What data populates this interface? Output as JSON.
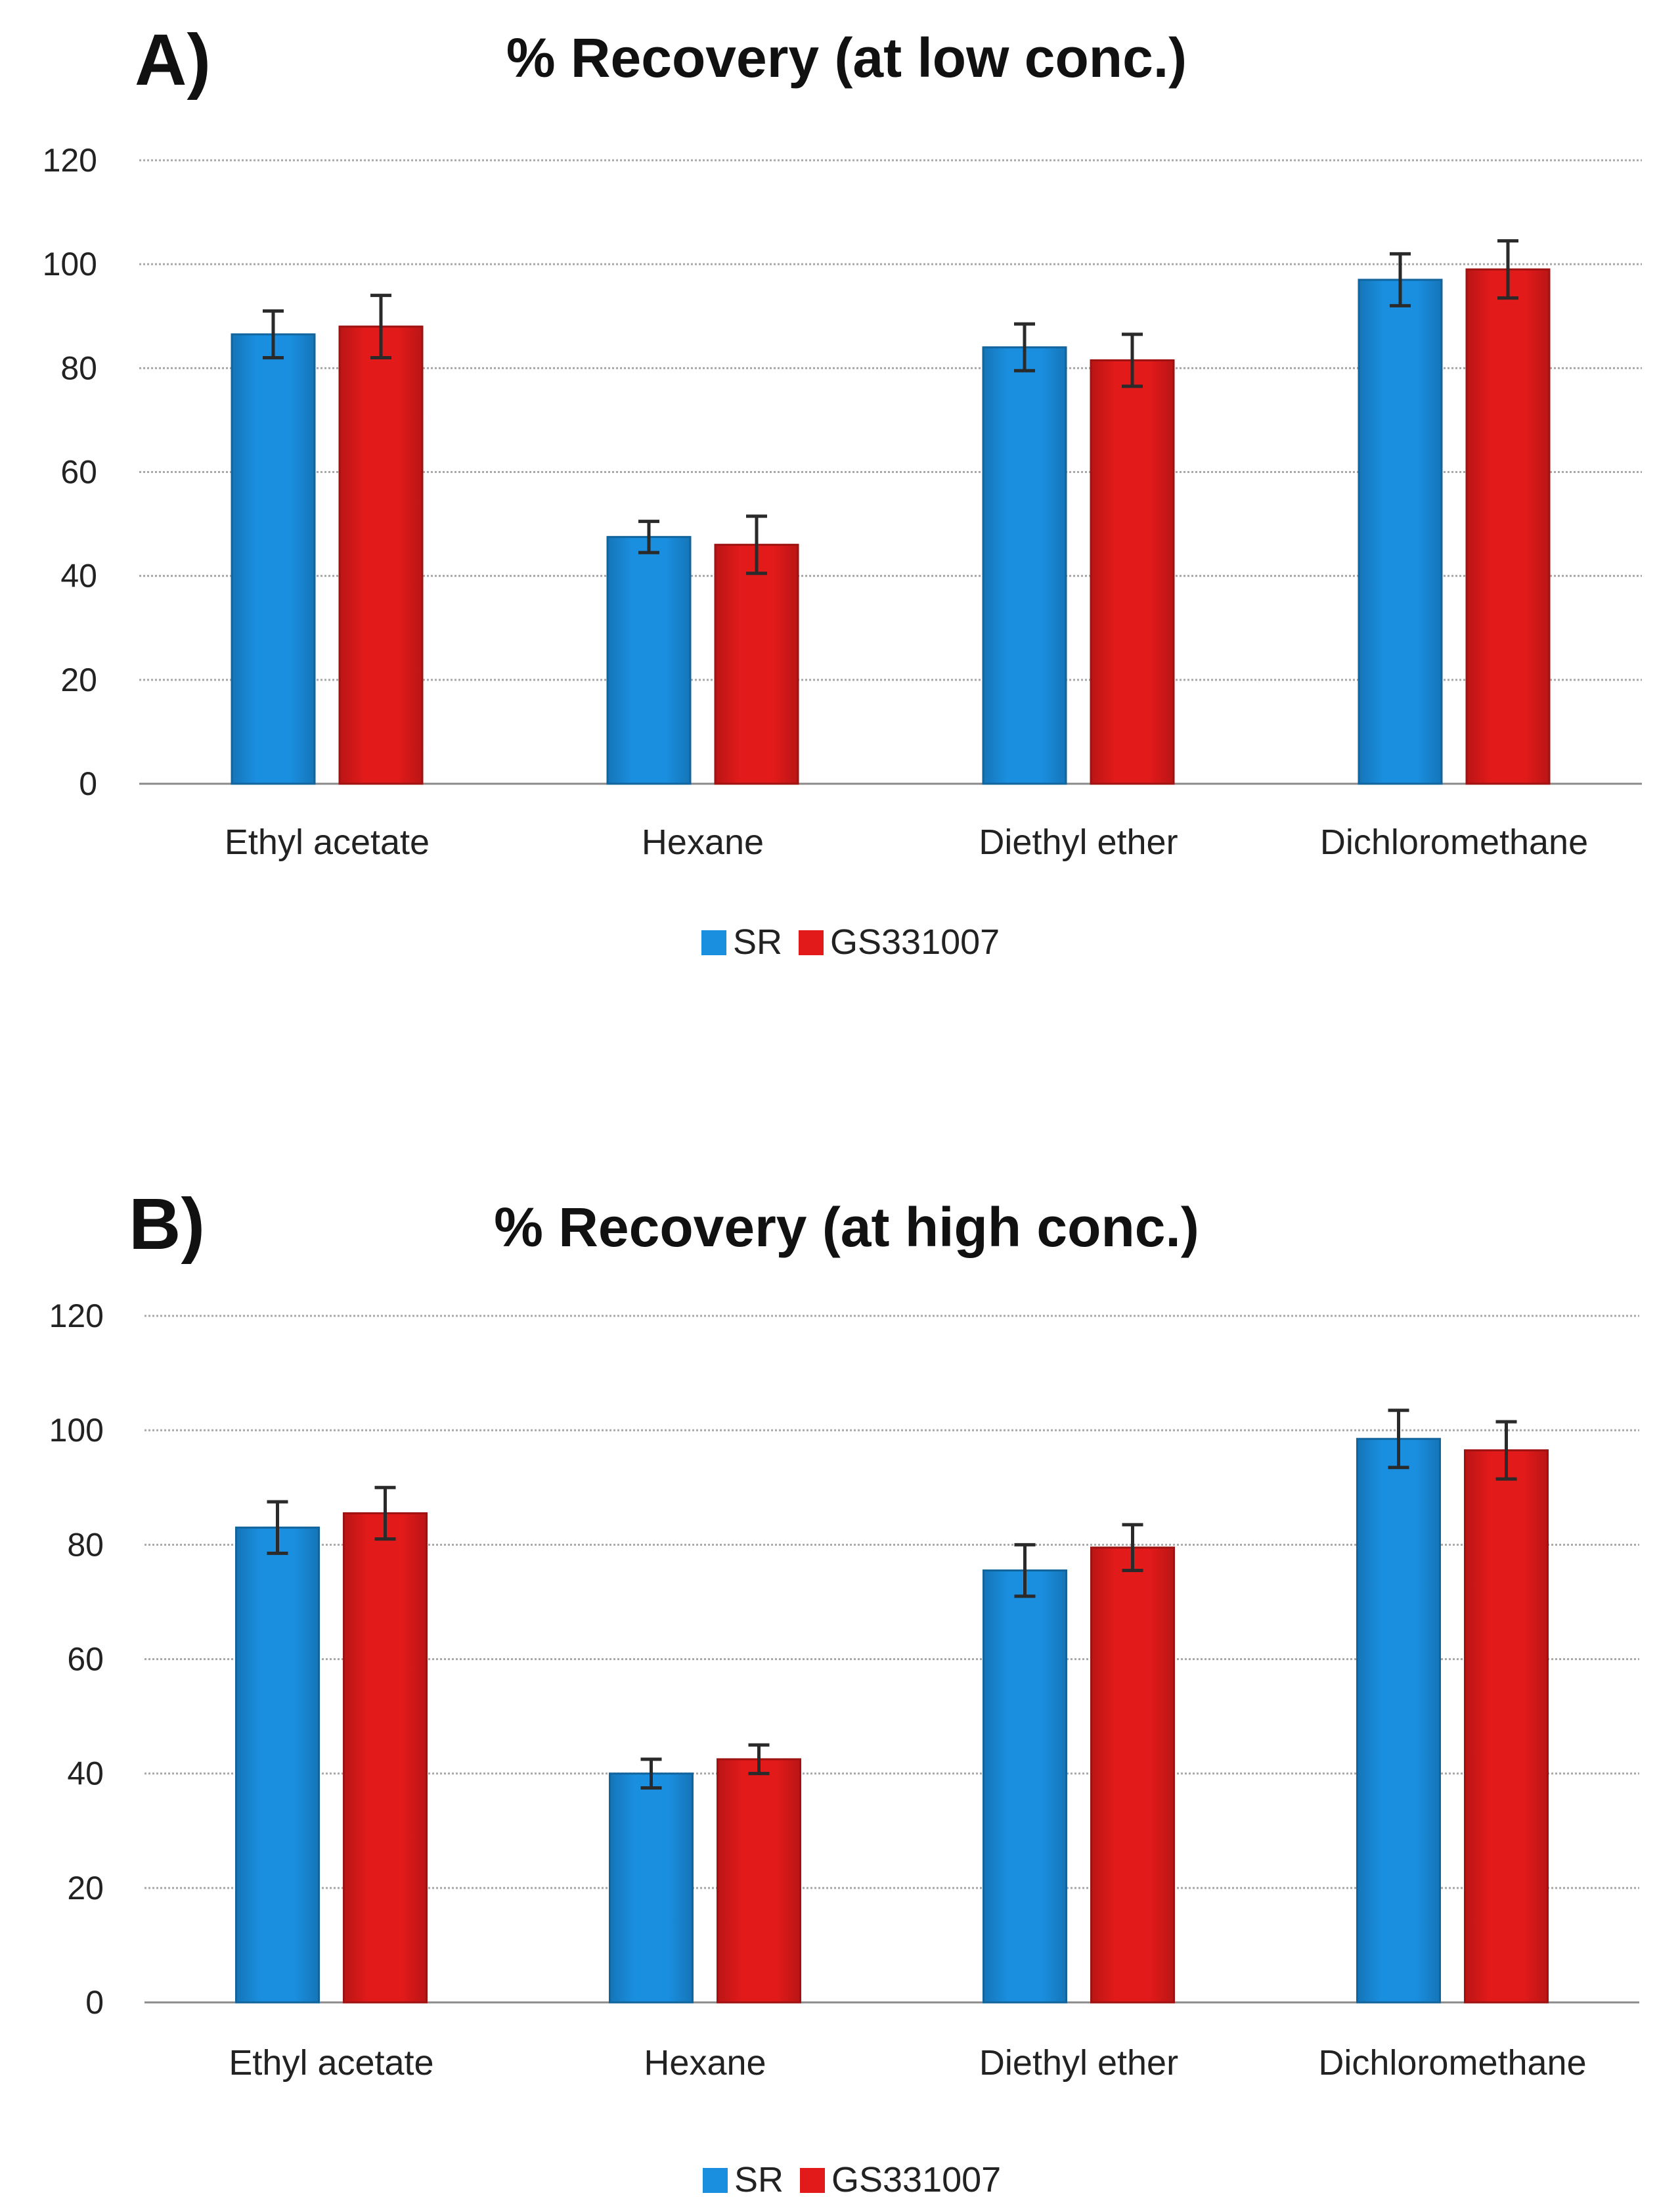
{
  "chart_data": [
    {
      "type": "bar",
      "panel_label": "A)",
      "title": "% Recovery (at low conc.)",
      "categories": [
        "Ethyl acetate",
        "Hexane",
        "Diethyl ether",
        "Dichloromethane"
      ],
      "series": [
        {
          "name": "SR",
          "color": "#1a8fe0",
          "values": [
            86.5,
            47.5,
            84,
            97
          ],
          "errors": [
            4.5,
            3,
            4.5,
            5
          ]
        },
        {
          "name": "GS331007",
          "color": "#e31a1a",
          "values": [
            88,
            46,
            81.5,
            99
          ],
          "errors": [
            6,
            5.5,
            5,
            5.5
          ]
        }
      ],
      "ylim": [
        0,
        120
      ],
      "yticks": [
        0,
        20,
        40,
        60,
        80,
        100,
        120
      ],
      "xlabel": "",
      "ylabel": "",
      "grid": true,
      "legend": "bottom-center"
    },
    {
      "type": "bar",
      "panel_label": "B)",
      "title": "% Recovery (at high conc.)",
      "categories": [
        "Ethyl acetate",
        "Hexane",
        "Diethyl ether",
        "Dichloromethane"
      ],
      "series": [
        {
          "name": "SR",
          "color": "#1a8fe0",
          "values": [
            83,
            40,
            75.5,
            98.5
          ],
          "errors": [
            4.5,
            2.5,
            4.5,
            5
          ]
        },
        {
          "name": "GS331007",
          "color": "#e31a1a",
          "values": [
            85.5,
            42.5,
            79.5,
            96.5
          ],
          "errors": [
            4.5,
            2.5,
            4,
            5
          ]
        }
      ],
      "ylim": [
        0,
        120
      ],
      "yticks": [
        0,
        20,
        40,
        60,
        80,
        100,
        120
      ],
      "xlabel": "",
      "ylabel": "",
      "grid": true,
      "legend": "bottom-center"
    }
  ]
}
